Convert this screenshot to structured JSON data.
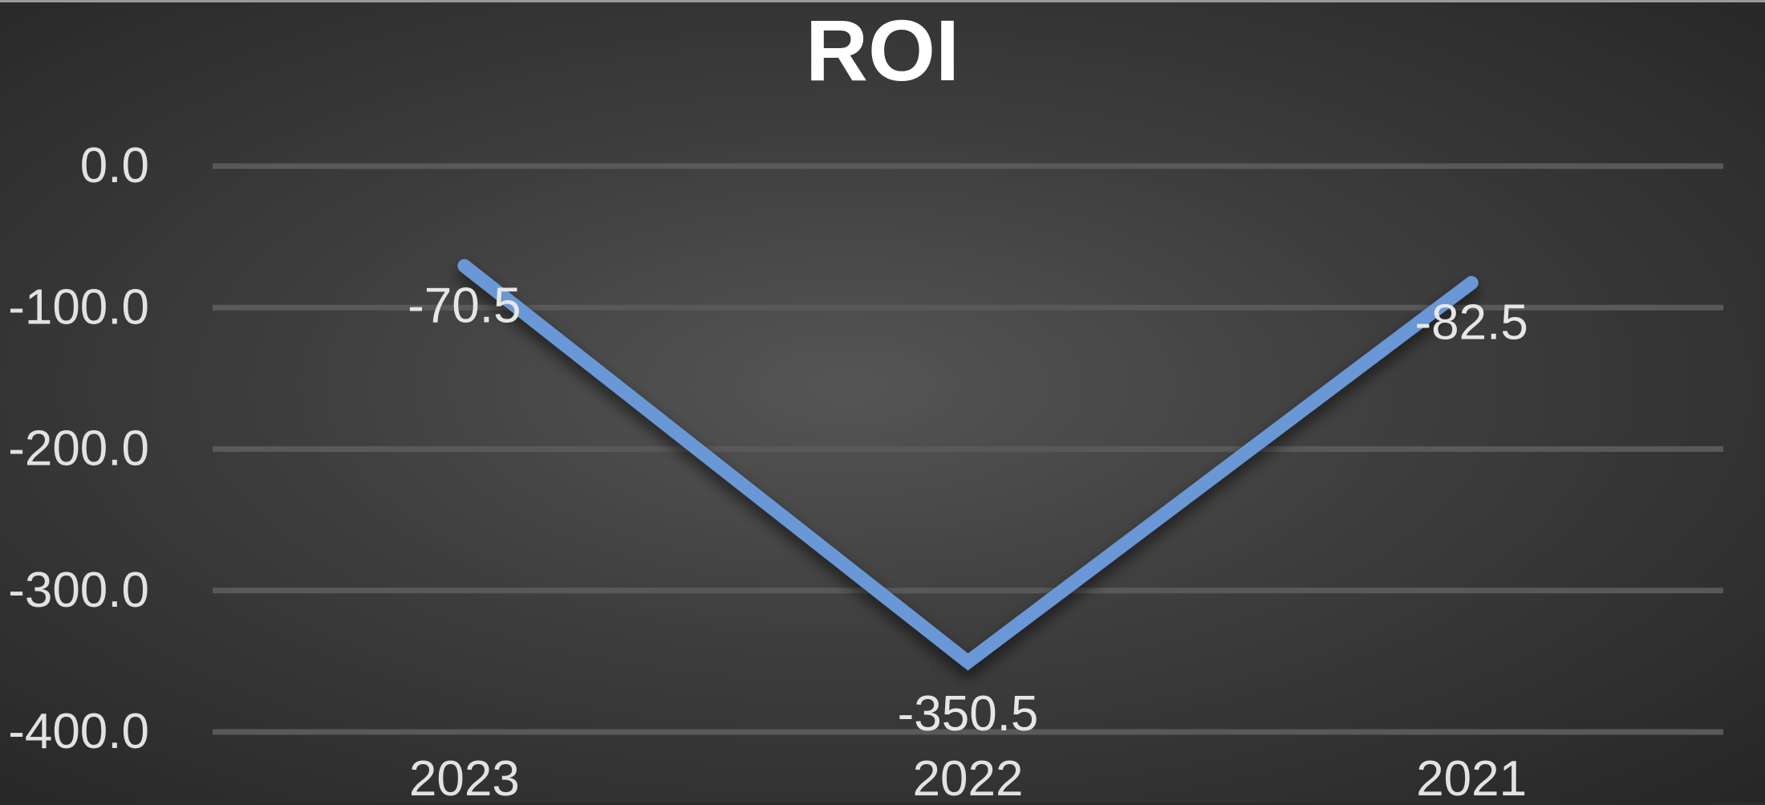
{
  "chart_data": {
    "type": "line",
    "title": "ROI",
    "categories": [
      "2023",
      "2022",
      "2021"
    ],
    "series": [
      {
        "values": [
          -70.5,
          -350.5,
          -82.5
        ],
        "color": "#6a98d6"
      }
    ],
    "data_labels": [
      "-70.5",
      "-350.5",
      "-82.5"
    ],
    "y_ticks": [
      "0.0",
      "-100.0",
      "-200.0",
      "-300.0",
      "-400.0"
    ],
    "y_tick_values": [
      0,
      -100,
      -200,
      -300,
      -400
    ],
    "ylim": [
      -400,
      0
    ],
    "grid": true,
    "legend": "none",
    "xlabel": "",
    "ylabel": ""
  }
}
